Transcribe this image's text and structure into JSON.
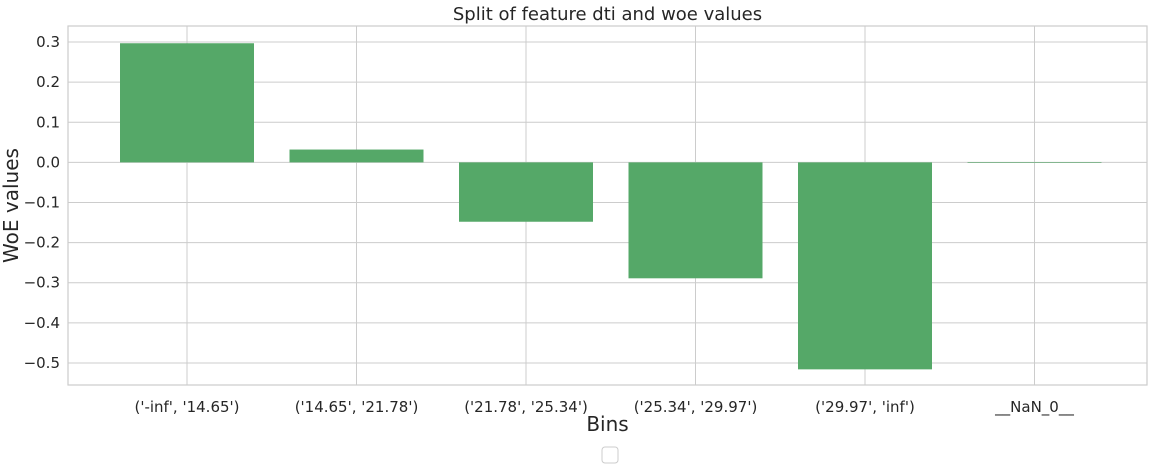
{
  "chart_data": {
    "type": "bar",
    "title": "Split of feature dti and woe values",
    "xlabel": "Bins",
    "ylabel": "WoE values",
    "categories": [
      "('-inf', '14.65')",
      "('14.65', '21.78')",
      "('21.78', '25.34')",
      "('25.34', '29.97')",
      "('29.97', 'inf')",
      "__NaN_0__"
    ],
    "values": [
      0.297,
      0.032,
      -0.148,
      -0.289,
      -0.516,
      0.0
    ],
    "ylim": [
      -0.555,
      0.34
    ],
    "yticks": [
      0.3,
      0.2,
      0.1,
      0.0,
      -0.1,
      -0.2,
      -0.3,
      -0.4,
      -0.5
    ],
    "ytick_labels": [
      "0.3",
      "0.2",
      "0.1",
      "0.0",
      "−0.1",
      "−0.2",
      "−0.3",
      "−0.4",
      "−0.5"
    ],
    "bar_color": "#55a868",
    "grid": true,
    "legend": {
      "placement": "bottom-center",
      "entries": []
    }
  }
}
